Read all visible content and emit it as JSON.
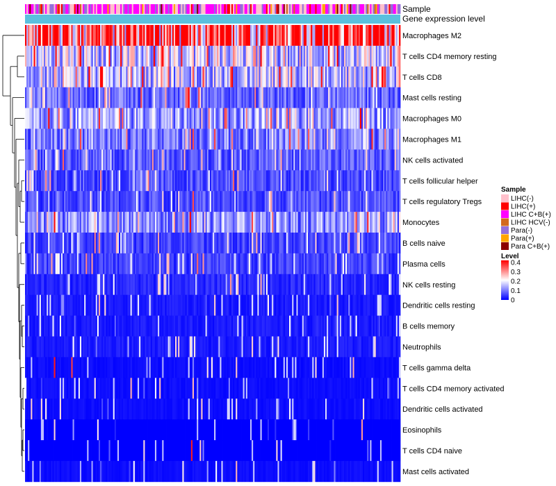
{
  "chart_data": {
    "type": "heatmap",
    "annotations": [
      {
        "name": "Sample"
      },
      {
        "name": "Gene expression level"
      }
    ],
    "rows": [
      {
        "label": "Macrophages M2",
        "mean": 0.33
      },
      {
        "label": "T cells CD4 memory resting",
        "mean": 0.16
      },
      {
        "label": "T cells CD8",
        "mean": 0.15
      },
      {
        "label": "Mast cells resting",
        "mean": 0.08
      },
      {
        "label": "Macrophages M0",
        "mean": 0.12
      },
      {
        "label": "Macrophages M1",
        "mean": 0.1
      },
      {
        "label": "NK cells activated",
        "mean": 0.07
      },
      {
        "label": "T cells follicular helper",
        "mean": 0.06
      },
      {
        "label": "T cells regulatory  Tregs",
        "mean": 0.06
      },
      {
        "label": "Monocytes",
        "mean": 0.11
      },
      {
        "label": "B cells naive",
        "mean": 0.05
      },
      {
        "label": "Plasma cells",
        "mean": 0.05
      },
      {
        "label": "NK cells resting",
        "mean": 0.03
      },
      {
        "label": "Dendritic cells resting",
        "mean": 0.02
      },
      {
        "label": "B cells memory",
        "mean": 0.02
      },
      {
        "label": "Neutrophils",
        "mean": 0.02
      },
      {
        "label": "T cells gamma delta",
        "mean": 0.01
      },
      {
        "label": "T cells CD4 memory activated",
        "mean": 0.01
      },
      {
        "label": "Dendritic cells activated",
        "mean": 0.01
      },
      {
        "label": "Eosinophils",
        "mean": 0.0
      },
      {
        "label": "T cells CD4 naive",
        "mean": 0.0
      },
      {
        "label": "Mast cells activated",
        "mean": 0.01
      }
    ],
    "sample_legend": {
      "title": "Sample",
      "entries": [
        {
          "label": "LIHC(-)",
          "color": "#ffc0cb"
        },
        {
          "label": "LIHC(+)",
          "color": "#ff0000"
        },
        {
          "label": "LIHC C+B(+)",
          "color": "#ff00ff"
        },
        {
          "label": "LIHC HCV(-)",
          "color": "#d2691e"
        },
        {
          "label": "Para(-)",
          "color": "#9370db"
        },
        {
          "label": "Para(+)",
          "color": "#ffa500"
        },
        {
          "label": "Para C+B(+)",
          "color": "#8b0000"
        }
      ]
    },
    "level_legend": {
      "title": "Level",
      "ticks": [
        "0.4",
        "0.3",
        "0.2",
        "0.1",
        "0"
      ],
      "range": [
        0,
        0.4
      ],
      "colors": [
        "#0000ff",
        "#ffffff",
        "#ff0000"
      ]
    },
    "gene_expression_color": "#5bc0de",
    "num_columns": 260
  }
}
